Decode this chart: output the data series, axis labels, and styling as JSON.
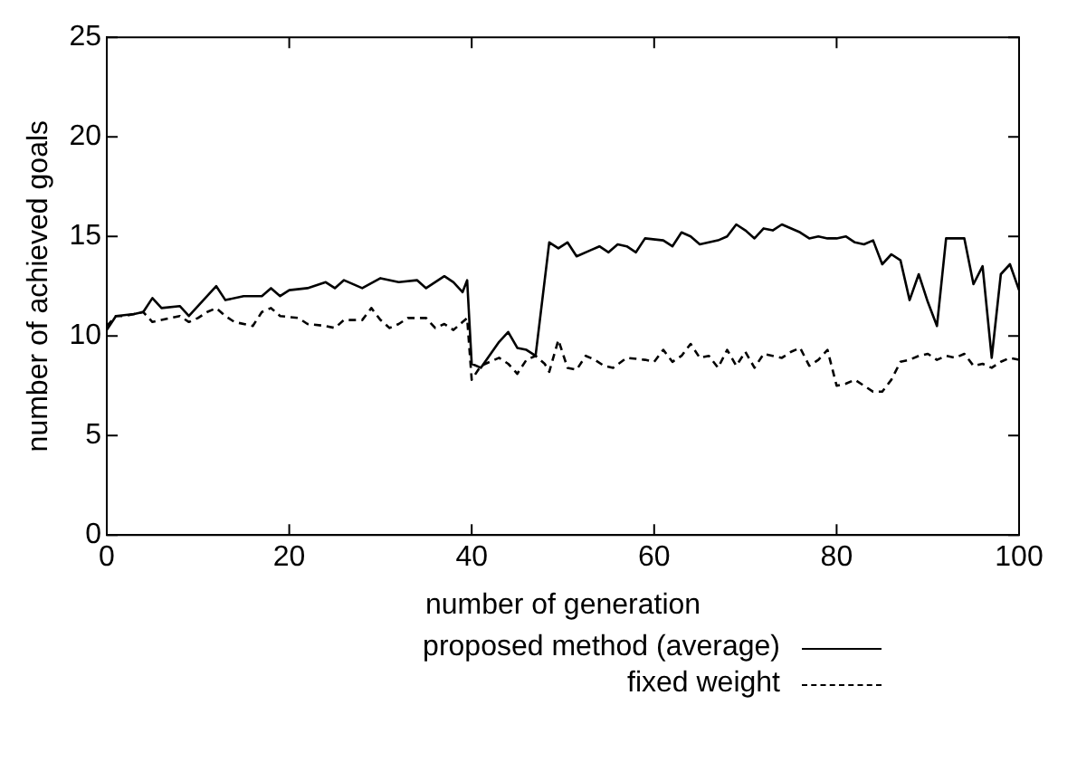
{
  "chart_data": {
    "type": "line",
    "xlabel": "number of generation",
    "ylabel": "number of achieved goals",
    "xlim": [
      0,
      100
    ],
    "xticks": [
      0,
      20,
      40,
      60,
      80,
      100
    ],
    "ylim": [
      0,
      25
    ],
    "yticks": [
      0,
      5,
      10,
      15,
      20,
      25
    ],
    "grid": false,
    "legend": "bottom right",
    "marker": "none",
    "series": [
      {
        "name": "proposed method (average)",
        "color": "#000000",
        "line_style": "solid",
        "x": [
          0,
          1,
          3,
          4,
          5,
          6,
          8,
          9,
          12,
          13,
          15,
          17,
          18,
          19,
          20,
          22,
          24,
          25,
          26,
          28,
          30,
          32,
          34,
          35,
          37,
          38,
          39,
          39.5,
          40,
          41,
          43,
          44,
          45,
          46,
          47,
          48.5,
          49.5,
          50.5,
          51.5,
          53,
          54,
          55,
          56,
          57,
          58,
          59,
          61,
          62,
          63,
          64,
          65,
          67,
          68,
          69,
          70,
          71,
          72,
          73,
          74,
          76,
          77,
          78,
          79,
          80,
          81,
          82,
          83,
          84,
          85,
          86,
          87,
          88,
          89,
          90,
          91,
          92,
          93,
          94,
          95,
          96,
          97,
          98,
          99,
          100
        ],
        "values": [
          10.3,
          11.0,
          11.1,
          11.2,
          11.9,
          11.4,
          11.5,
          11.0,
          12.5,
          11.8,
          12.0,
          12.0,
          12.4,
          12.0,
          12.3,
          12.4,
          12.7,
          12.4,
          12.8,
          12.4,
          12.9,
          12.7,
          12.8,
          12.4,
          13.0,
          12.7,
          12.2,
          12.8,
          8.6,
          8.4,
          9.7,
          10.2,
          9.4,
          9.3,
          9.0,
          14.7,
          14.4,
          14.7,
          14.0,
          14.3,
          14.5,
          14.2,
          14.6,
          14.5,
          14.2,
          14.9,
          14.8,
          14.5,
          15.2,
          15.0,
          14.6,
          14.8,
          15.0,
          15.6,
          15.3,
          14.9,
          15.4,
          15.3,
          15.6,
          15.2,
          14.9,
          15.0,
          14.9,
          14.9,
          15.0,
          14.7,
          14.6,
          14.8,
          13.6,
          14.1,
          13.8,
          11.8,
          13.1,
          11.7,
          10.5,
          14.9,
          14.9,
          14.9,
          12.6,
          13.5,
          8.9,
          13.1,
          13.6,
          12.3
        ]
      },
      {
        "name": "fixed weight",
        "color": "#000000",
        "line_style": "dashed",
        "x": [
          0,
          1,
          2,
          3,
          4,
          5,
          6,
          8,
          9,
          10,
          11,
          12,
          13,
          14,
          16,
          17,
          18,
          19,
          21,
          22,
          24,
          25,
          26,
          28,
          29,
          30,
          31,
          32,
          33,
          35,
          36,
          37,
          38,
          39,
          39.5,
          40,
          41,
          42,
          43,
          44,
          45,
          46,
          47,
          48,
          48.5,
          49.5,
          50.5,
          51.5,
          52.5,
          53.5,
          54.5,
          55.5,
          57,
          59,
          60,
          61,
          62,
          63,
          64,
          65,
          66,
          67,
          68,
          69,
          70,
          71,
          72,
          74,
          75,
          76,
          77,
          78,
          79,
          80,
          81,
          82,
          83,
          84,
          85,
          86,
          87,
          88,
          89,
          90,
          91,
          92,
          93,
          94,
          95,
          96,
          97,
          98,
          99,
          100
        ],
        "values": [
          10.5,
          11.0,
          11.0,
          11.1,
          11.2,
          10.7,
          10.8,
          11.0,
          10.7,
          10.9,
          11.2,
          11.4,
          11.0,
          10.7,
          10.5,
          11.2,
          11.4,
          11.0,
          10.9,
          10.6,
          10.5,
          10.4,
          10.8,
          10.8,
          11.4,
          10.8,
          10.4,
          10.6,
          10.9,
          10.9,
          10.4,
          10.6,
          10.3,
          10.7,
          10.9,
          7.8,
          8.5,
          8.7,
          8.9,
          8.6,
          8.1,
          8.8,
          9.0,
          8.6,
          8.2,
          9.8,
          8.4,
          8.3,
          9.0,
          8.8,
          8.5,
          8.4,
          8.9,
          8.8,
          8.7,
          9.3,
          8.7,
          9.0,
          9.6,
          8.9,
          9.0,
          8.4,
          9.3,
          8.5,
          9.2,
          8.4,
          9.1,
          8.9,
          9.2,
          9.4,
          8.5,
          8.8,
          9.3,
          7.5,
          7.6,
          7.8,
          7.5,
          7.2,
          7.2,
          7.8,
          8.7,
          8.8,
          9.0,
          9.1,
          8.8,
          9.0,
          8.9,
          9.1,
          8.5,
          8.6,
          8.4,
          8.7,
          8.9,
          8.8
        ]
      }
    ]
  }
}
